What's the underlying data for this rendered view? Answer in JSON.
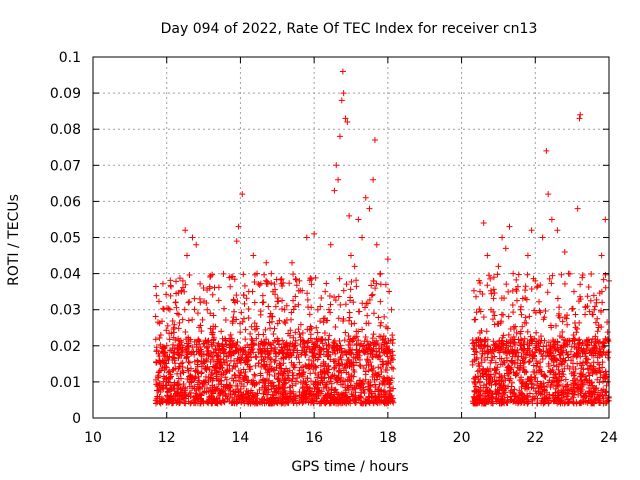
{
  "chart_data": {
    "type": "scatter",
    "title": "Day 094 of 2022, Rate Of TEC Index for receiver cn13",
    "xlabel": "GPS time / hours",
    "ylabel": "ROTI / TECUs",
    "xlim": [
      10,
      24
    ],
    "ylim": [
      0,
      0.1
    ],
    "x_ticks": [
      "10",
      "12",
      "14",
      "16",
      "18",
      "20",
      "22",
      "24"
    ],
    "y_ticks": [
      "0",
      "0.01",
      "0.02",
      "0.03",
      "0.04",
      "0.05",
      "0.06",
      "0.07",
      "0.08",
      "0.09",
      "0.1"
    ],
    "grid": true,
    "marker": "+",
    "color": "#ff0000",
    "series": [
      {
        "points": [
          [
            11.75,
            0.006
          ],
          [
            11.8,
            0.013
          ],
          [
            11.85,
            0.009
          ],
          [
            11.9,
            0.016
          ],
          [
            11.95,
            0.011
          ],
          [
            12.0,
            0.02
          ],
          [
            12.1,
            0.012
          ],
          [
            12.2,
            0.025
          ],
          [
            12.3,
            0.018
          ],
          [
            12.4,
            0.035
          ],
          [
            12.5,
            0.052
          ],
          [
            12.55,
            0.045
          ],
          [
            12.6,
            0.027
          ],
          [
            12.7,
            0.05
          ],
          [
            12.8,
            0.048
          ],
          [
            12.9,
            0.033
          ],
          [
            13.0,
            0.036
          ],
          [
            13.1,
            0.03
          ],
          [
            13.2,
            0.018
          ],
          [
            13.3,
            0.014
          ],
          [
            13.5,
            0.012
          ],
          [
            13.7,
            0.02
          ],
          [
            13.85,
            0.032
          ],
          [
            13.9,
            0.049
          ],
          [
            13.95,
            0.053
          ],
          [
            14.05,
            0.062
          ],
          [
            14.2,
            0.017
          ],
          [
            14.35,
            0.045
          ],
          [
            14.45,
            0.04
          ],
          [
            14.6,
            0.032
          ],
          [
            14.7,
            0.043
          ],
          [
            14.8,
            0.028
          ],
          [
            15.0,
            0.022
          ],
          [
            15.2,
            0.03
          ],
          [
            15.4,
            0.043
          ],
          [
            15.6,
            0.038
          ],
          [
            15.8,
            0.05
          ],
          [
            16.0,
            0.051
          ],
          [
            16.1,
            0.03
          ],
          [
            16.3,
            0.035
          ],
          [
            16.45,
            0.048
          ],
          [
            16.55,
            0.063
          ],
          [
            16.6,
            0.07
          ],
          [
            16.65,
            0.066
          ],
          [
            16.7,
            0.078
          ],
          [
            16.75,
            0.088
          ],
          [
            16.78,
            0.096
          ],
          [
            16.8,
            0.09
          ],
          [
            16.85,
            0.083
          ],
          [
            16.9,
            0.082
          ],
          [
            16.95,
            0.056
          ],
          [
            17.0,
            0.045
          ],
          [
            17.1,
            0.042
          ],
          [
            17.2,
            0.055
          ],
          [
            17.3,
            0.05
          ],
          [
            17.4,
            0.061
          ],
          [
            17.5,
            0.058
          ],
          [
            17.6,
            0.066
          ],
          [
            17.65,
            0.077
          ],
          [
            17.7,
            0.048
          ],
          [
            17.8,
            0.04
          ],
          [
            17.9,
            0.028
          ],
          [
            18.0,
            0.044
          ],
          [
            18.1,
            0.03
          ],
          [
            20.35,
            0.02
          ],
          [
            20.5,
            0.035
          ],
          [
            20.6,
            0.054
          ],
          [
            20.7,
            0.045
          ],
          [
            20.8,
            0.03
          ],
          [
            21.0,
            0.042
          ],
          [
            21.1,
            0.05
          ],
          [
            21.2,
            0.047
          ],
          [
            21.3,
            0.053
          ],
          [
            21.4,
            0.04
          ],
          [
            21.6,
            0.03
          ],
          [
            21.8,
            0.045
          ],
          [
            21.9,
            0.052
          ],
          [
            22.0,
            0.038
          ],
          [
            22.2,
            0.05
          ],
          [
            22.3,
            0.074
          ],
          [
            22.35,
            0.062
          ],
          [
            22.45,
            0.055
          ],
          [
            22.6,
            0.052
          ],
          [
            22.8,
            0.046
          ],
          [
            22.9,
            0.04
          ],
          [
            23.05,
            0.035
          ],
          [
            23.15,
            0.058
          ],
          [
            23.2,
            0.083
          ],
          [
            23.22,
            0.084
          ],
          [
            23.4,
            0.02
          ],
          [
            23.6,
            0.03
          ],
          [
            23.8,
            0.045
          ],
          [
            23.9,
            0.055
          ],
          [
            24.0,
            0.038
          ]
        ]
      }
    ],
    "dense_band": [
      {
        "x_range": [
          11.7,
          18.15
        ],
        "y_range": [
          0.004,
          0.022
        ]
      },
      {
        "x_range": [
          20.3,
          24.0
        ],
        "y_range": [
          0.004,
          0.022
        ]
      }
    ]
  }
}
